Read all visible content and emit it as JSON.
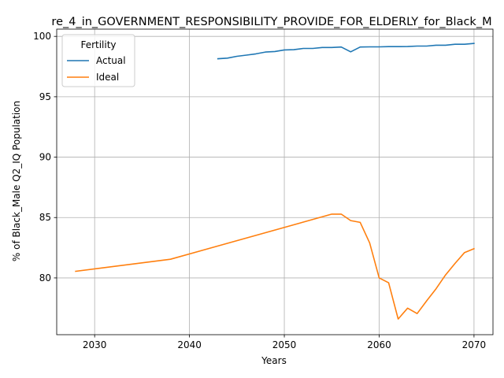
{
  "chart_data": {
    "type": "line",
    "title": "re_4_in_GOVERNMENT_RESPONSIBILITY_PROVIDE_FOR_ELDERLY_for_Black_M",
    "xlabel": "Years",
    "ylabel": "% of Black_Male Q2_IQ Population",
    "xlim": [
      2026,
      2072
    ],
    "ylim": [
      75.3,
      100.6
    ],
    "xticks": [
      2030,
      2040,
      2050,
      2060,
      2070
    ],
    "yticks": [
      80,
      85,
      90,
      95,
      100
    ],
    "grid": true,
    "legend": {
      "title": "Fertility",
      "placement": "top-left"
    },
    "series": [
      {
        "name": "Actual",
        "color": "#1f77b4",
        "x": [
          2043,
          2044,
          2045,
          2046,
          2047,
          2048,
          2049,
          2050,
          2051,
          2052,
          2053,
          2054,
          2055,
          2056,
          2057,
          2058,
          2059,
          2060,
          2061,
          2062,
          2063,
          2064,
          2065,
          2066,
          2067,
          2068,
          2069,
          2070
        ],
        "y": [
          98.15,
          98.2,
          98.35,
          98.45,
          98.55,
          98.7,
          98.75,
          98.88,
          98.9,
          99.0,
          99.0,
          99.08,
          99.08,
          99.12,
          98.72,
          99.12,
          99.13,
          99.13,
          99.15,
          99.15,
          99.16,
          99.2,
          99.2,
          99.27,
          99.27,
          99.35,
          99.35,
          99.42
        ]
      },
      {
        "name": "Ideal",
        "color": "#ff7f0e",
        "x": [
          2028,
          2038,
          2055,
          2056,
          2057,
          2058,
          2059,
          2060,
          2061,
          2062,
          2063,
          2064,
          2065,
          2066,
          2067,
          2068,
          2069,
          2070
        ],
        "y": [
          80.55,
          81.55,
          85.28,
          85.28,
          84.75,
          84.6,
          82.9,
          80.0,
          79.6,
          76.6,
          77.5,
          77.05,
          78.1,
          79.1,
          80.25,
          81.2,
          82.1,
          82.42
        ]
      }
    ]
  }
}
